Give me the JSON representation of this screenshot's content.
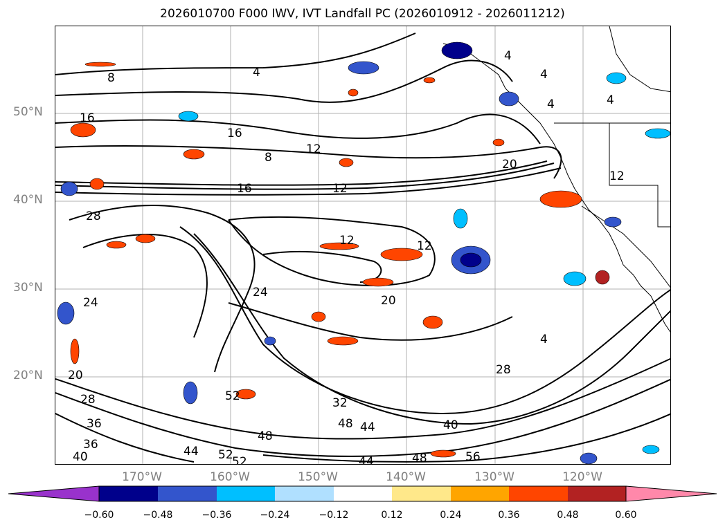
{
  "title": "2026010700 F000 IWV, IVT Landfall PC (2026010912 - 2026011212)",
  "lat_labels": [
    "50°N",
    "40°N",
    "30°N",
    "20°N"
  ],
  "lon_labels": [
    "170°W",
    "160°W",
    "150°W",
    "140°W",
    "130°W",
    "120°W"
  ],
  "contour_labels": [
    "8",
    "4",
    "4",
    "4",
    "4",
    "4",
    "16",
    "16",
    "12",
    "8",
    "20",
    "12",
    "16",
    "12",
    "28",
    "12",
    "12",
    "24",
    "20",
    "24",
    "28",
    "20",
    "36",
    "32",
    "28",
    "52",
    "48",
    "44",
    "40",
    "48",
    "44",
    "36",
    "40",
    "44",
    "48",
    "52",
    "56",
    "52",
    "4"
  ],
  "colorbar": {
    "ticks": [
      "−0.60",
      "−0.48",
      "−0.36",
      "−0.24",
      "−0.12",
      "0.12",
      "0.24",
      "0.36",
      "0.48",
      "0.60"
    ],
    "colors": [
      "#9932cc",
      "#00008b",
      "#3355cc",
      "#00bfff",
      "#b0e0ff",
      "#ffffff",
      "#ffe88a",
      "#ffa500",
      "#ff4500",
      "#b22222",
      "#ff88aa"
    ]
  },
  "map": {
    "lon_range": [
      -180,
      -110
    ],
    "lat_range": [
      10,
      60
    ],
    "gridlines": true
  }
}
